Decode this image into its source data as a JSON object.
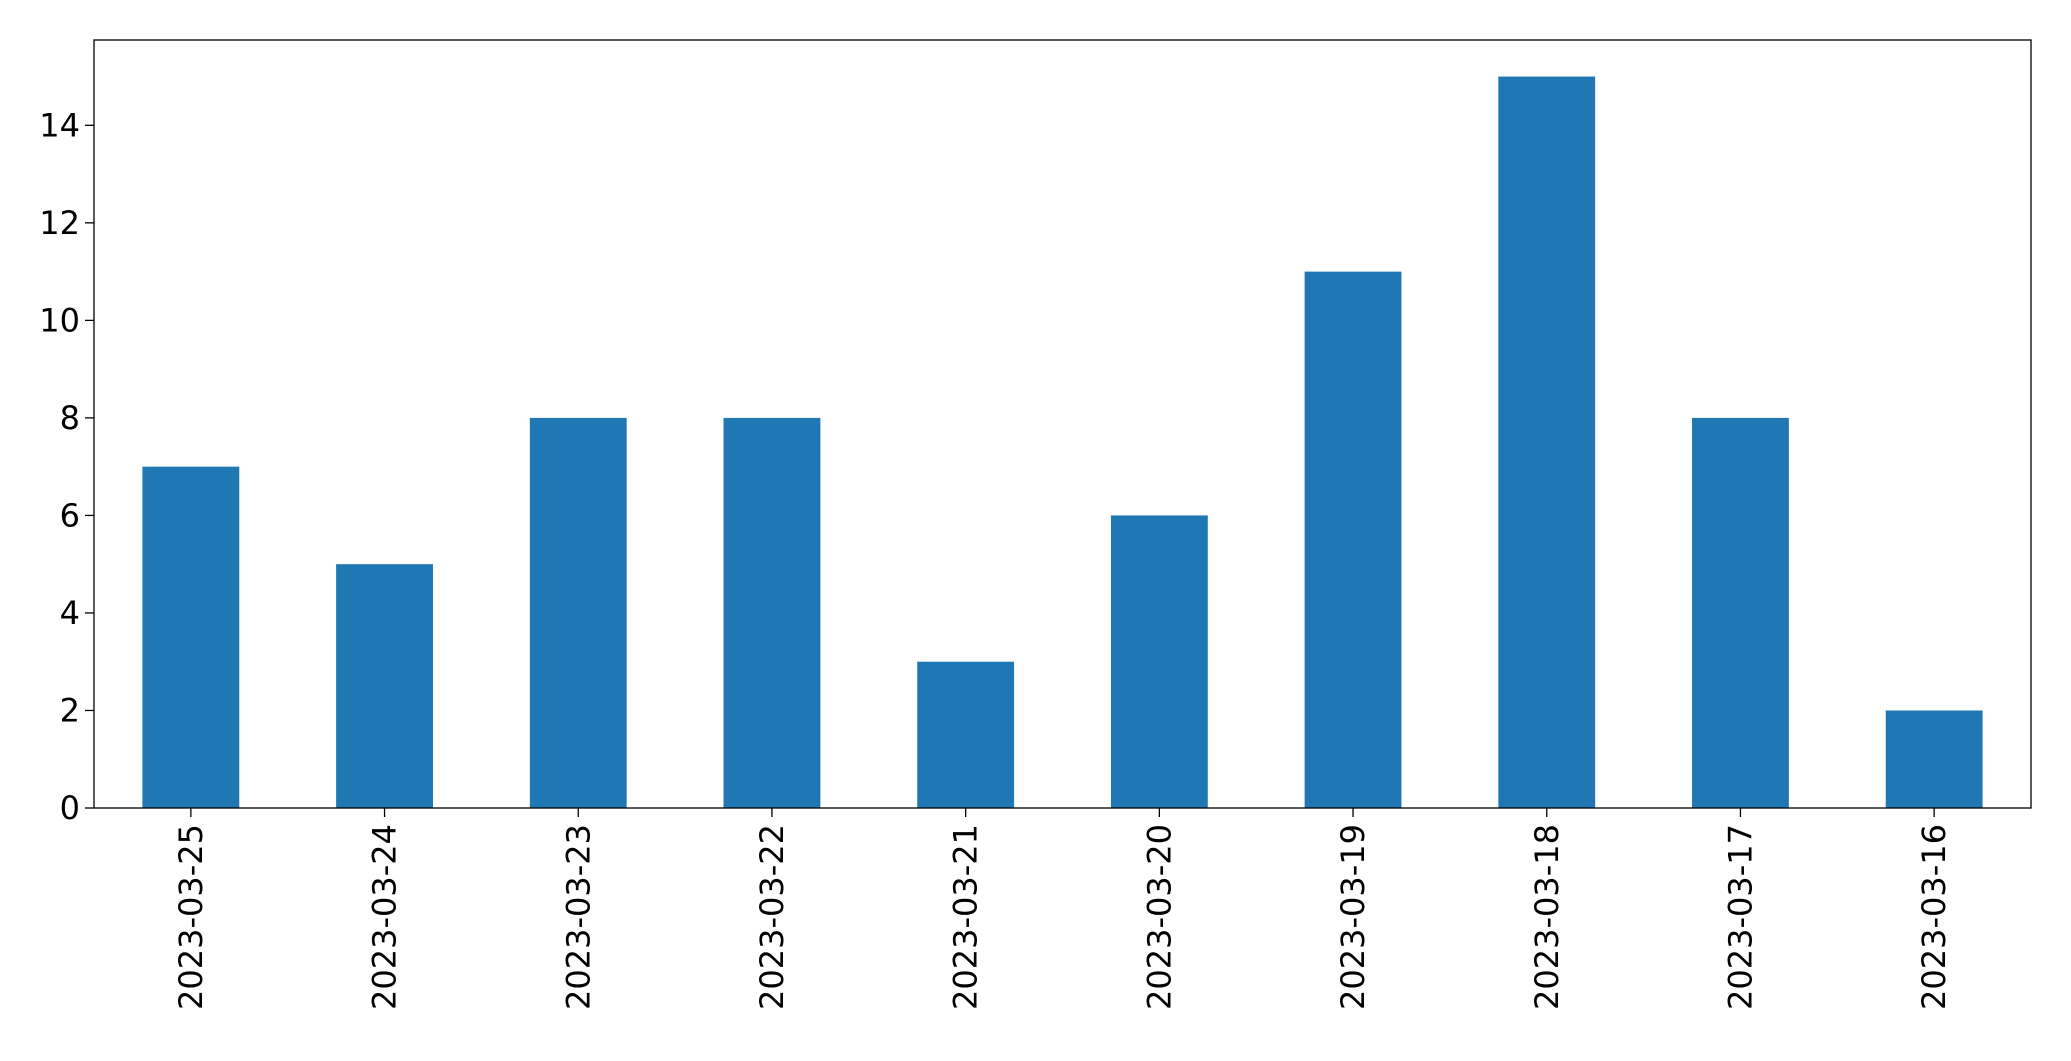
{
  "chart_data": {
    "type": "bar",
    "categories": [
      "2023-03-25",
      "2023-03-24",
      "2023-03-23",
      "2023-03-22",
      "2023-03-21",
      "2023-03-20",
      "2023-03-19",
      "2023-03-18",
      "2023-03-17",
      "2023-03-16"
    ],
    "values": [
      7,
      5,
      8,
      8,
      3,
      6,
      11,
      15,
      8,
      2
    ],
    "color": "#1f77b4",
    "ylim": [
      0,
      15.75
    ],
    "yticks": [
      0,
      2,
      4,
      6,
      8,
      10,
      12,
      14
    ],
    "grid": false
  }
}
